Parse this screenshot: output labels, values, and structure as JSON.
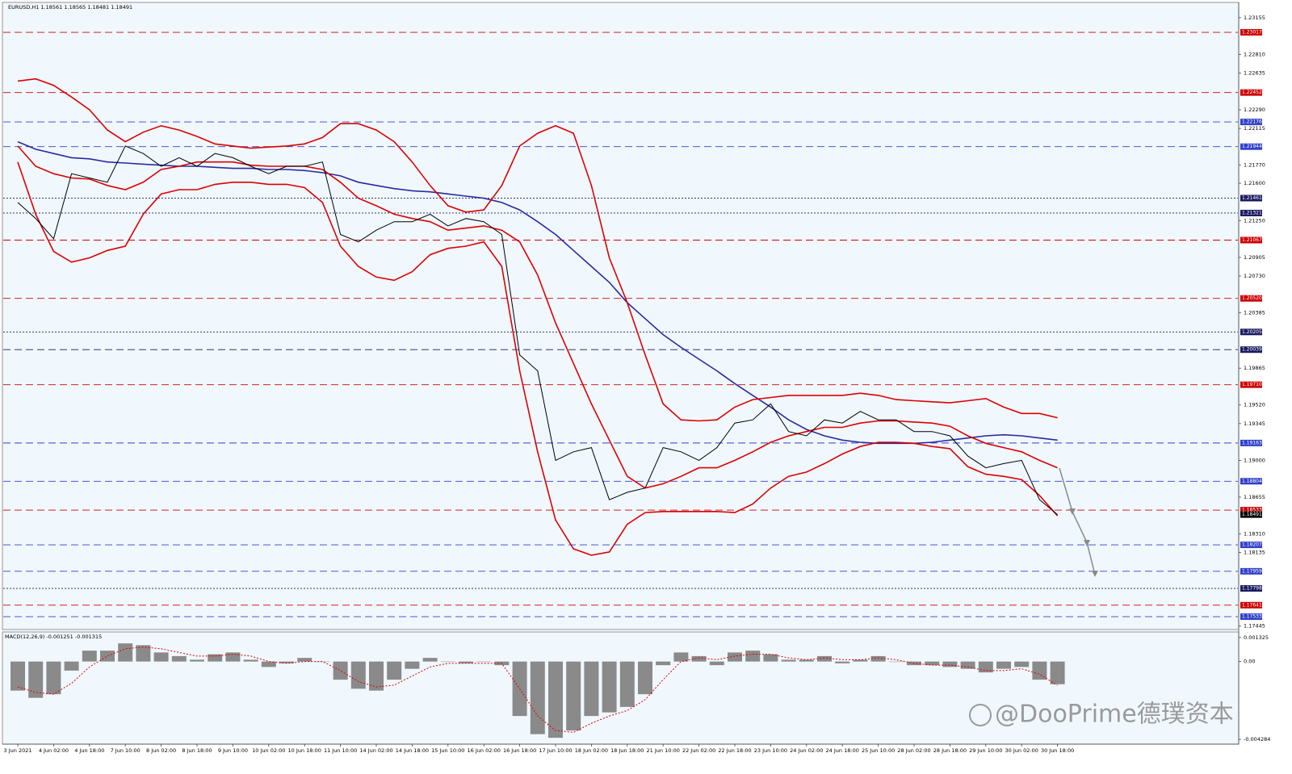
{
  "watermark": "@DooPrime德璞资本",
  "chart_data": [
    {
      "type": "line",
      "title": "EURUSD,H1  1.18561 1.18565 1.18481 1.18491",
      "categories": [
        "3 Jun 2021",
        null,
        "4 Jun 02:00",
        null,
        "4 Jun 18:00",
        null,
        "7 Jun 10:00",
        null,
        "8 Jun 02:00",
        null,
        "8 Jun 18:00",
        null,
        "9 Jun 10:00",
        null,
        "10 Jun 02:00",
        null,
        "10 Jun 18:00",
        null,
        "11 Jun 10:00",
        null,
        "14 Jun 02:00",
        null,
        "14 Jun 18:00",
        null,
        "15 Jun 10:00",
        null,
        "16 Jun 02:00",
        null,
        "16 Jun 18:00",
        null,
        "17 Jun 10:00",
        null,
        "18 Jun 02:00",
        null,
        "18 Jun 18:00",
        null,
        "21 Jun 10:00",
        null,
        "22 Jun 02:00",
        null,
        "22 Jun 18:00",
        null,
        "23 Jun 10:00",
        null,
        "24 Jun 02:00",
        null,
        "24 Jun 18:00",
        null,
        "25 Jun 10:00",
        null,
        "28 Jun 02:00",
        null,
        "28 Jun 18:00",
        null,
        "29 Jun 10:00",
        null,
        "30 Jun 02:00",
        null,
        "30 Jun 18:00"
      ],
      "series": [
        {
          "color": "#2a2aa0",
          "values": [
            1.2199,
            1.2192,
            1.2188,
            1.2184,
            1.2183,
            1.218,
            1.2179,
            1.2178,
            1.2177,
            1.2176,
            1.2176,
            1.2175,
            1.2174,
            1.2174,
            1.2173,
            1.2173,
            1.2172,
            1.217,
            1.2167,
            1.2161,
            1.2158,
            1.2155,
            1.2153,
            1.2152,
            1.215,
            1.2148,
            1.2146,
            1.2142,
            1.2135,
            1.2124,
            1.2112,
            1.2097,
            1.2082,
            1.2067,
            1.2048,
            1.2033,
            1.2018,
            1.2006,
            1.1995,
            1.1984,
            1.1972,
            1.1961,
            1.195,
            1.1938,
            1.1929,
            1.1923,
            1.1919,
            1.1917,
            1.1916,
            1.1916,
            1.1916,
            1.1917,
            1.1919,
            1.1921,
            1.1923,
            1.1924,
            1.1923,
            1.1921,
            1.1919
          ]
        },
        {
          "color": "#dd0000",
          "values": [
            1.2256,
            1.2258,
            1.2252,
            1.2241,
            1.2229,
            1.221,
            1.2199,
            1.2208,
            1.2214,
            1.221,
            1.2204,
            1.2197,
            1.2195,
            1.2193,
            1.2194,
            1.2195,
            1.2197,
            1.2203,
            1.2216,
            1.2216,
            1.221,
            1.2199,
            1.218,
            1.2158,
            1.2139,
            1.2133,
            1.2135,
            1.2158,
            1.2195,
            1.2207,
            1.2214,
            1.2207,
            1.2158,
            1.209,
            1.2048,
            1.1999,
            1.1953,
            1.1938,
            1.1937,
            1.1938,
            1.195,
            1.1957,
            1.1959,
            1.1961,
            1.1961,
            1.1961,
            1.1961,
            1.1963,
            1.1961,
            1.1957,
            1.1956,
            1.1955,
            1.1954,
            1.1956,
            1.1958,
            1.195,
            1.1944,
            1.1944,
            1.194
          ]
        },
        {
          "color": "#dd0000",
          "values": [
            1.2195,
            1.2176,
            1.2169,
            1.2165,
            1.2164,
            1.2158,
            1.2154,
            1.2161,
            1.2173,
            1.2176,
            1.218,
            1.218,
            1.218,
            1.2177,
            1.2176,
            1.2176,
            1.2176,
            1.2173,
            1.2161,
            1.2146,
            1.2139,
            1.2131,
            1.2127,
            1.2124,
            1.2116,
            1.2118,
            1.212,
            1.2116,
            1.2105,
            1.2074,
            1.2029,
            1.1991,
            1.1953,
            1.1919,
            1.1885,
            1.1874,
            1.1878,
            1.1885,
            1.1893,
            1.1893,
            1.19,
            1.1908,
            1.1917,
            1.1923,
            1.1927,
            1.1931,
            1.1931,
            1.1935,
            1.1937,
            1.1937,
            1.1936,
            1.1935,
            1.1932,
            1.1923,
            1.1916,
            1.1912,
            1.1908,
            1.19,
            1.1893
          ]
        },
        {
          "color": "#dd0000",
          "values": [
            1.218,
            1.2131,
            1.2096,
            1.2086,
            1.209,
            1.2097,
            1.2101,
            1.2131,
            1.215,
            1.2154,
            1.2154,
            1.2159,
            1.2161,
            1.2161,
            1.2159,
            1.2159,
            1.2156,
            1.2142,
            1.2101,
            1.2082,
            1.2072,
            1.2069,
            1.2077,
            1.2093,
            1.2099,
            1.2101,
            1.2105,
            1.2082,
            1.1984,
            1.1908,
            1.1844,
            1.1817,
            1.1811,
            1.1814,
            1.184,
            1.1851,
            1.1852,
            1.1852,
            1.1852,
            1.1852,
            1.1851,
            1.1859,
            1.1874,
            1.1885,
            1.1889,
            1.1897,
            1.1906,
            1.1913,
            1.1917,
            1.1917,
            1.1916,
            1.1913,
            1.1911,
            1.1894,
            1.1887,
            1.1885,
            1.1882,
            1.1867,
            1.1848
          ]
        },
        {
          "color": "#000000",
          "values": [
            1.2142,
            1.2127,
            1.2108,
            1.2169,
            1.2165,
            1.2161,
            1.2195,
            1.2188,
            1.2176,
            1.2184,
            1.2176,
            1.2188,
            1.2184,
            1.2176,
            1.2169,
            1.2176,
            1.2176,
            1.218,
            1.2112,
            1.2105,
            1.2116,
            1.2124,
            1.2124,
            1.2131,
            1.212,
            1.2127,
            1.2124,
            1.2112,
            1.1999,
            1.1984,
            1.19,
            1.1908,
            1.1912,
            1.1863,
            1.187,
            1.1874,
            1.1912,
            1.1908,
            1.19,
            1.1912,
            1.1935,
            1.1938,
            1.1953,
            1.1927,
            1.1923,
            1.1938,
            1.1935,
            1.1946,
            1.1938,
            1.1938,
            1.1927,
            1.1927,
            1.1923,
            1.1904,
            1.1893,
            1.1897,
            1.19,
            1.1863,
            1.18491
          ]
        }
      ],
      "ylim": [
        1.1742,
        1.2329
      ],
      "yticks": [
        1.23155,
        {
          "value": 1.2281,
          "label": "1.22810"
        },
        1.22635,
        {
          "value": 1.2229,
          "label": "1.22290"
        },
        1.22115,
        {
          "value": 1.2177,
          "label": "1.21770"
        },
        {
          "value": 1.216,
          "label": "1.21600"
        },
        {
          "value": 1.2125,
          "label": "1.21250"
        },
        1.20905,
        {
          "value": 1.2073,
          "label": "1.20730"
        },
        1.20385,
        1.19865,
        {
          "value": 1.1952,
          "label": "1.19520"
        },
        1.19345,
        {
          "value": 1.19,
          "label": "1.19000"
        },
        1.18655,
        {
          "value": 1.1831,
          "label": "1.18310"
        },
        1.18135,
        1.17445
      ],
      "levels": [
        {
          "value": 1.23017,
          "color": "#cc0000",
          "dash": "dashed"
        },
        {
          "value": 1.22452,
          "color": "#cc0000",
          "dash": "dashed"
        },
        {
          "value": 1.22176,
          "color": "#3040c8",
          "dash": "dashed"
        },
        {
          "value": 1.21944,
          "color": "#3040c8",
          "dash": "dashed"
        },
        {
          "value": 1.21461,
          "color": "#1a1a60",
          "dash": "dotted"
        },
        {
          "value": 1.21321,
          "color": "#1a1a60",
          "dash": "dotted"
        },
        {
          "value": 1.21067,
          "color": "#cc0000",
          "dash": "dashed"
        },
        {
          "value": 1.2052,
          "label": "1.20520",
          "color": "#cc0000",
          "dash": "dashed"
        },
        {
          "value": 1.20205,
          "color": "#1a1a60",
          "dash": "dotted"
        },
        {
          "value": 1.20039,
          "color": "#1a1a60",
          "dash": "dashed"
        },
        {
          "value": 1.1971,
          "label": "1.19710",
          "color": "#cc0000",
          "dash": "dashed"
        },
        {
          "value": 1.19163,
          "color": "#3040c8",
          "dash": "dashed"
        },
        {
          "value": 1.18804,
          "color": "#3040c8",
          "dash": "dashed"
        },
        {
          "value": 1.18533,
          "color": "#cc0000",
          "dash": "dashed"
        },
        {
          "value": 1.18207,
          "color": "#3040c8",
          "dash": "dashed"
        },
        {
          "value": 1.17959,
          "color": "#3040c8",
          "dash": "dashed"
        },
        {
          "value": 1.17798,
          "color": "#1a1a60",
          "dash": "dotted"
        },
        {
          "value": 1.17641,
          "color": "#cc0000",
          "dash": "dashed"
        },
        {
          "value": 1.17533,
          "color": "#3040c8",
          "dash": "dashed"
        }
      ],
      "current": 1.18491
    },
    {
      "type": "bar",
      "title": "MACD(12,26,9) -0.001251 -0.001315",
      "color": "#8a8a8a",
      "values": [
        -0.0016,
        -0.002,
        -0.0018,
        -0.0005,
        0.0006,
        0.0006,
        0.001,
        0.0009,
        0.0005,
        0.0003,
        0.0001,
        0.0004,
        0.0005,
        0.0001,
        -0.0003,
        -0.0001,
        0.0002,
        0,
        -0.001,
        -0.0015,
        -0.0016,
        -0.001,
        -0.0004,
        0.0002,
        0,
        -0.0001,
        0,
        -0.0002,
        -0.003,
        -0.004,
        -0.0042,
        -0.0038,
        -0.003,
        -0.0028,
        -0.0025,
        -0.0018,
        -0.0002,
        0.0005,
        0.0003,
        -0.0002,
        0.0005,
        0.0006,
        0.0004,
        0.0001,
        0.0001,
        0.0003,
        -0.0001,
        0.0001,
        0.0003,
        0,
        -0.0002,
        -0.0002,
        -0.0003,
        -0.0004,
        -0.0006,
        -0.0004,
        -0.0003,
        -0.001,
        -0.001251
      ],
      "signal": {
        "color": "#e00000",
        "values": [
          -0.0014,
          -0.0017,
          -0.0018,
          -0.0012,
          -0.0003,
          0.0003,
          0.0007,
          0.0008,
          0.0007,
          0.0005,
          0.0003,
          0.0003,
          0.0004,
          0.0003,
          0,
          -0.0001,
          0,
          0,
          -0.0005,
          -0.0011,
          -0.0014,
          -0.0013,
          -0.0008,
          -0.0003,
          -0.0001,
          -0.0001,
          -0.0001,
          -0.0001,
          -0.0015,
          -0.003,
          -0.0038,
          -0.0039,
          -0.0034,
          -0.003,
          -0.0027,
          -0.0021,
          -0.001,
          0,
          0.0002,
          0.0001,
          0.0003,
          0.0004,
          0.0004,
          0.0002,
          0.0001,
          0.0002,
          0.0001,
          0.0001,
          0.0002,
          0.0001,
          -0.0001,
          -0.0002,
          -0.0002,
          -0.0003,
          -0.0005,
          -0.0005,
          -0.0004,
          -0.0007,
          -0.001315
        ]
      },
      "ylim": [
        -0.00446,
        0.00154
      ],
      "yticks": [
        0.001325,
        {
          "value": 0,
          "label": "0.00"
        },
        -0.004284
      ]
    }
  ]
}
